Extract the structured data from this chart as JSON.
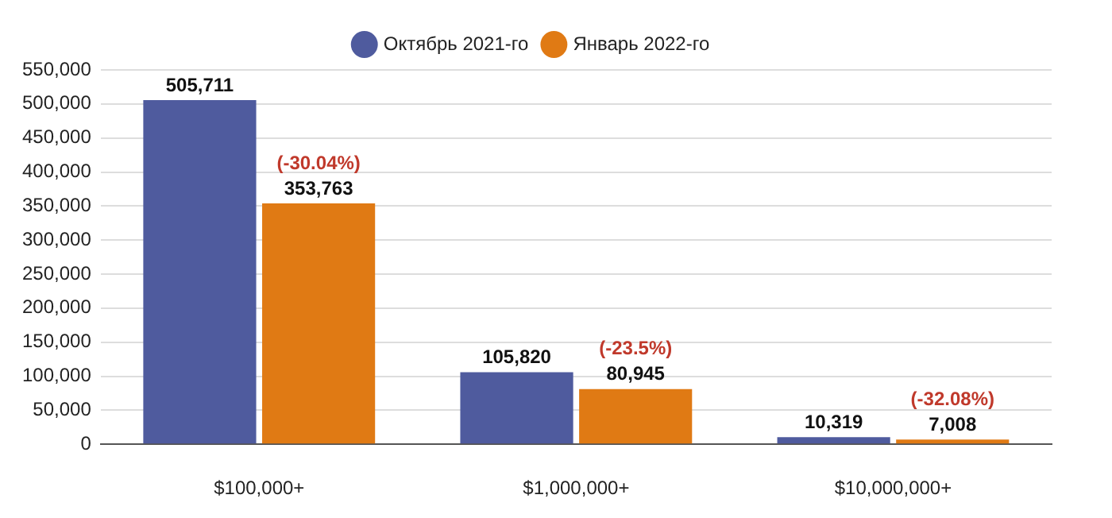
{
  "chart_data": {
    "type": "bar",
    "categories": [
      "$100,000+",
      "$1,000,000+",
      "$10,000,000+"
    ],
    "series": [
      {
        "name": "Октябрь 2021-го",
        "color": "#4f5b9e",
        "values": [
          505711,
          105820,
          10319
        ],
        "value_labels": [
          "505,711",
          "105,820",
          "10,319"
        ]
      },
      {
        "name": "Январь 2022-го",
        "color": "#e07a14",
        "values": [
          353763,
          80945,
          7008
        ],
        "value_labels": [
          "353,763",
          "80,945",
          "7,008"
        ]
      }
    ],
    "ylim": [
      0,
      550000
    ],
    "yticks": [
      {
        "value": 0,
        "label": "0"
      },
      {
        "value": 50000,
        "label": "50,000"
      },
      {
        "value": 100000,
        "label": "100,000"
      },
      {
        "value": 150000,
        "label": "150,000"
      },
      {
        "value": 200000,
        "label": "200,000"
      },
      {
        "value": 250000,
        "label": "250,000"
      },
      {
        "value": 300000,
        "label": "300,000"
      },
      {
        "value": 350000,
        "label": "350,000"
      },
      {
        "value": 400000,
        "label": "400,000"
      },
      {
        "value": 450000,
        "label": "450,000"
      },
      {
        "value": 500000,
        "label": "500,000"
      },
      {
        "value": 550000,
        "label": "550,000"
      }
    ],
    "annotations": [
      {
        "text": "(-30.04%)",
        "x": "$100,000+",
        "y": 353763
      },
      {
        "text": "(-23.5%)",
        "x": "$1,000,000+",
        "y": 80945
      },
      {
        "text": "(-32.08%)",
        "x": "$10,000,000+",
        "y": 7008
      }
    ],
    "grid": "y",
    "legend": "top"
  }
}
